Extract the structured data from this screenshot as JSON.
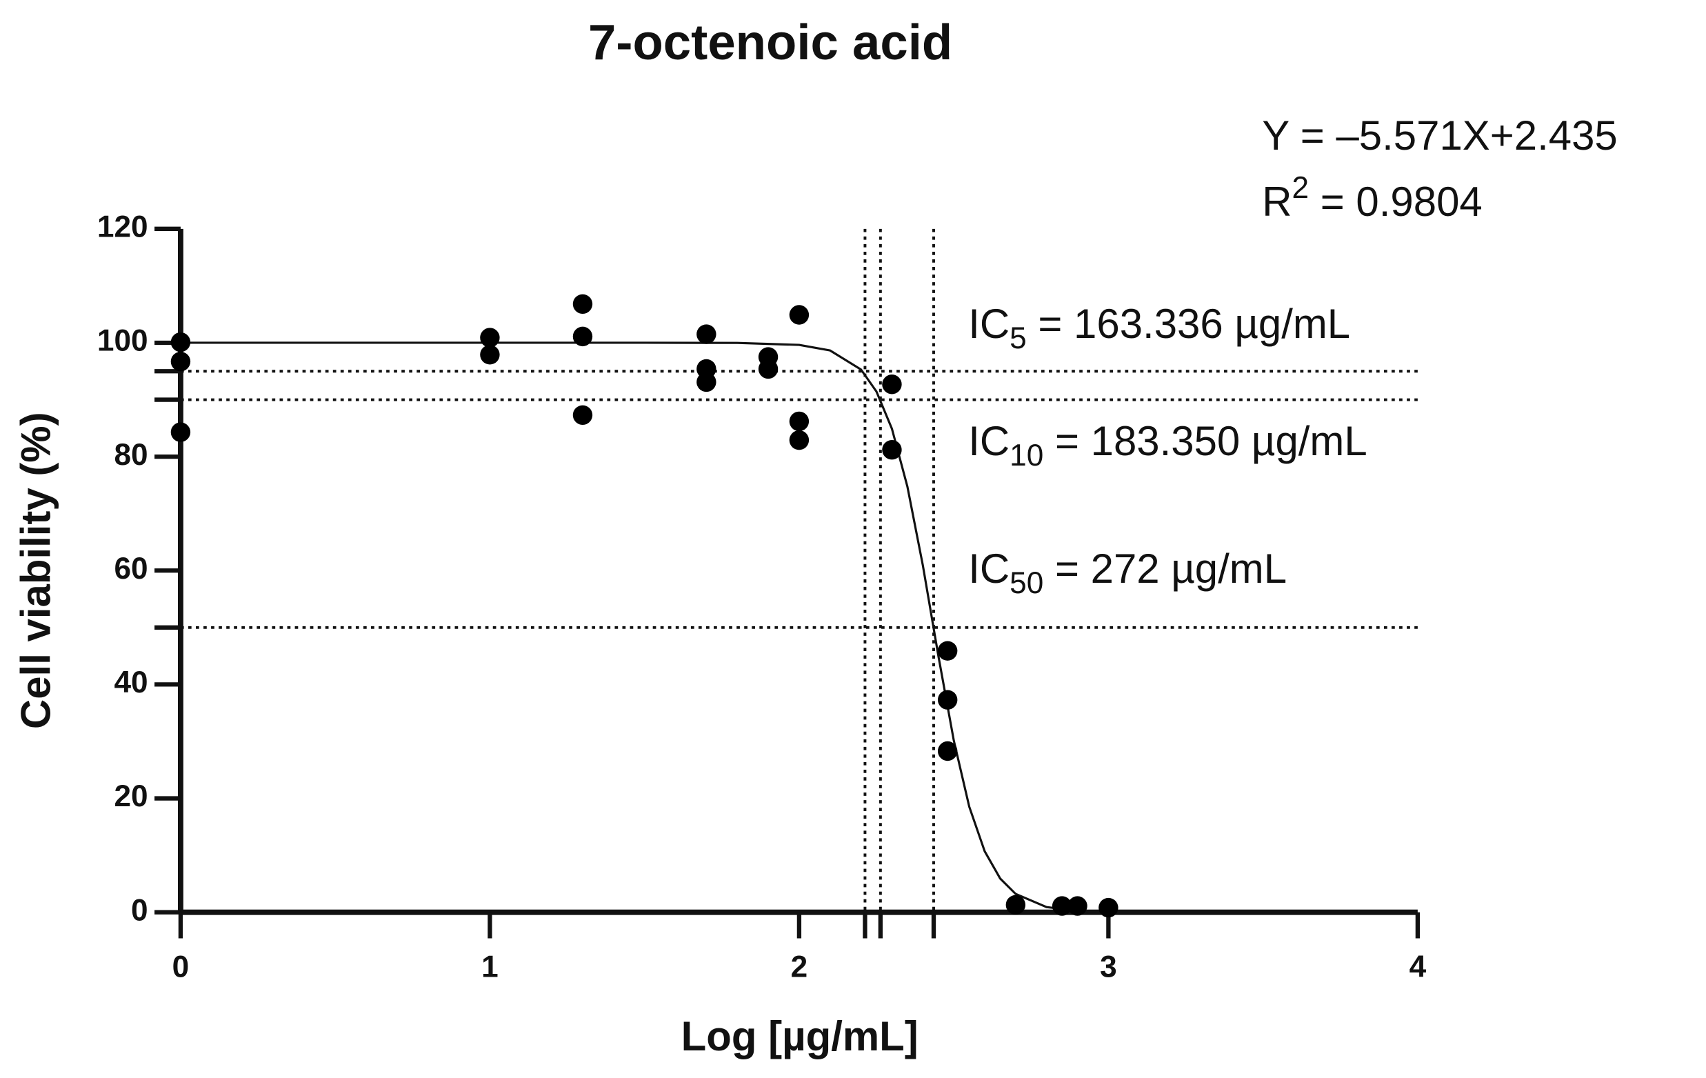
{
  "chart_data": {
    "type": "scatter",
    "title": "7-octenoic acid",
    "xlabel": "Log [µg/mL]",
    "ylabel": "Cell viability (%)",
    "xlim": [
      0,
      4
    ],
    "xticks": [
      0,
      1,
      2,
      3,
      4
    ],
    "ylim": [
      0,
      120
    ],
    "yticks": [
      0,
      20,
      40,
      60,
      80,
      100,
      120
    ],
    "color": "#000000",
    "points": {
      "x": [
        0,
        0,
        0,
        1,
        1,
        1.3,
        1.3,
        1.3,
        1.7,
        1.7,
        1.7,
        1.9,
        1.9,
        2,
        2,
        2,
        2.3,
        2.3,
        2.48,
        2.48,
        2.48,
        2.7,
        2.85,
        2.9,
        3
      ],
      "y": [
        100.1,
        96.7,
        84.3,
        100.9,
        97.9,
        106.8,
        101.1,
        87.3,
        101.5,
        95.4,
        93.1,
        97.5,
        95.4,
        104.9,
        86.2,
        82.9,
        92.7,
        81.2,
        45.9,
        37.3,
        28.3,
        1.3,
        1.1,
        1.1,
        0.8
      ]
    },
    "curve": {
      "x": [
        0,
        0.5,
        1,
        1.5,
        1.8,
        2,
        2.1,
        2.2,
        2.25,
        2.3,
        2.35,
        2.4,
        2.45,
        2.5,
        2.55,
        2.6,
        2.65,
        2.7,
        2.8,
        2.9,
        3
      ],
      "y": [
        100,
        100,
        100,
        100,
        99.97,
        99.62,
        98.65,
        95.3,
        91.43,
        84.9,
        74.75,
        60.91,
        45.07,
        30.18,
        18.54,
        10.7,
        5.93,
        3.22,
        0.91,
        0.25,
        0.07
      ]
    },
    "hlines": [
      95,
      90,
      50
    ],
    "vlines": [
      2.213,
      2.263,
      2.435
    ],
    "annotations": [
      {
        "parts": [
          {
            "text": "Y = –5.571X+2.435"
          }
        ]
      },
      {
        "parts": [
          {
            "text": "R"
          },
          {
            "text": "2",
            "sup": true
          },
          {
            "text": " = 0.9804"
          }
        ]
      },
      {
        "parts": [
          {
            "text": "IC"
          },
          {
            "text": "5",
            "sub": true
          },
          {
            "text": " = 163.336 µg/mL"
          }
        ]
      },
      {
        "parts": [
          {
            "text": "IC"
          },
          {
            "text": "10",
            "sub": true
          },
          {
            "text": " = 183.350 µg/mL"
          }
        ]
      },
      {
        "parts": [
          {
            "text": "IC"
          },
          {
            "text": "50",
            "sub": true
          },
          {
            "text": " = 272 µg/mL"
          }
        ]
      }
    ]
  }
}
